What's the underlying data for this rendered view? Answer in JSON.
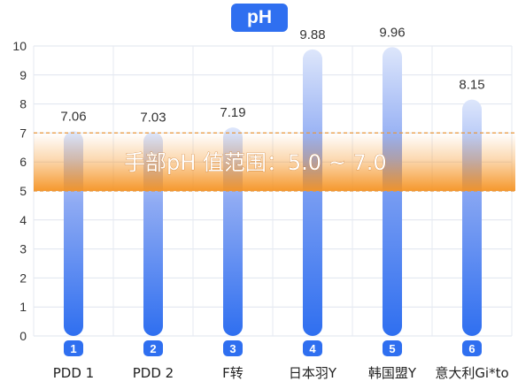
{
  "chart_data": {
    "type": "bar",
    "title": "pH",
    "categories": [
      "PDD 1",
      "PDD 2",
      "F转",
      "日本羽Y",
      "韩国盟Y",
      "意大利Gi*to"
    ],
    "category_badges": [
      "1",
      "2",
      "3",
      "4",
      "5",
      "6"
    ],
    "values": [
      7.06,
      7.03,
      7.19,
      9.88,
      9.96,
      8.15
    ],
    "value_labels": [
      "7.06",
      "7.03",
      "7.19",
      "9.88",
      "9.96",
      "8.15"
    ],
    "ylim": [
      0,
      10
    ],
    "yticks": [
      "0",
      "1",
      "2",
      "3",
      "4",
      "5",
      "6",
      "7",
      "8",
      "9",
      "10"
    ],
    "grid": true,
    "reference_band": {
      "low": 5.0,
      "high": 7.0,
      "label": "手部pH 值范围：5.0 ~ 7.0"
    },
    "colors": {
      "bar_top": "#dde6fb",
      "bar_bottom": "#2f6ff0",
      "band": "#f59322",
      "band_line": "#e8953a",
      "badge": "#2f6ff0",
      "title_bg": "#2f6ff0"
    }
  }
}
